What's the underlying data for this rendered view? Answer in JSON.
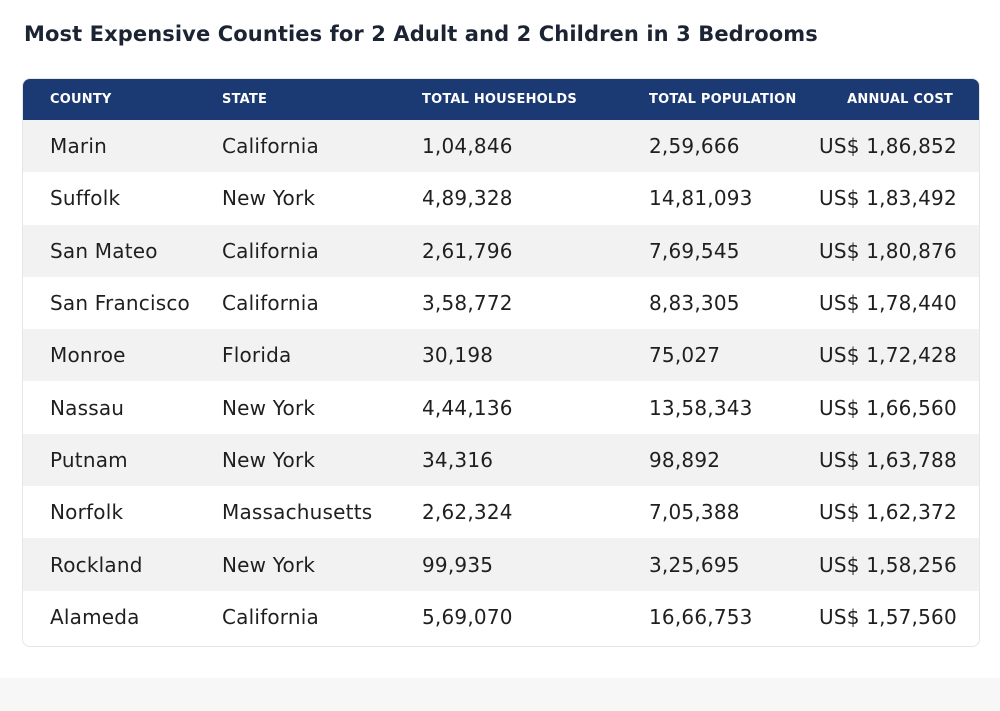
{
  "title": "Most Expensive Counties for 2 Adult and 2 Children in 3 Bedrooms",
  "table": {
    "headers": [
      "COUNTY",
      "STATE",
      "TOTAL HOUSEHOLDS",
      "TOTAL POPULATION",
      "ANNUAL COST"
    ],
    "rows": [
      [
        "Marin",
        "California",
        "1,04,846",
        "2,59,666",
        "US$ 1,86,852"
      ],
      [
        "Suffolk",
        "New York",
        "4,89,328",
        "14,81,093",
        "US$ 1,83,492"
      ],
      [
        "San Mateo",
        "California",
        "2,61,796",
        "7,69,545",
        "US$ 1,80,876"
      ],
      [
        "San Francisco",
        "California",
        "3,58,772",
        "8,83,305",
        "US$ 1,78,440"
      ],
      [
        "Monroe",
        "Florida",
        "30,198",
        "75,027",
        "US$ 1,72,428"
      ],
      [
        "Nassau",
        "New York",
        "4,44,136",
        "13,58,343",
        "US$ 1,66,560"
      ],
      [
        "Putnam",
        "New York",
        "34,316",
        "98,892",
        "US$ 1,63,788"
      ],
      [
        "Norfolk",
        "Massachusetts",
        "2,62,324",
        "7,05,388",
        "US$ 1,62,372"
      ],
      [
        "Rockland",
        "New York",
        "99,935",
        "3,25,695",
        "US$ 1,58,256"
      ],
      [
        "Alameda",
        "California",
        "5,69,070",
        "16,66,753",
        "US$ 1,57,560"
      ]
    ]
  },
  "colors": {
    "header_bg": "#1b3a73",
    "stripe": "#f2f2f2"
  }
}
